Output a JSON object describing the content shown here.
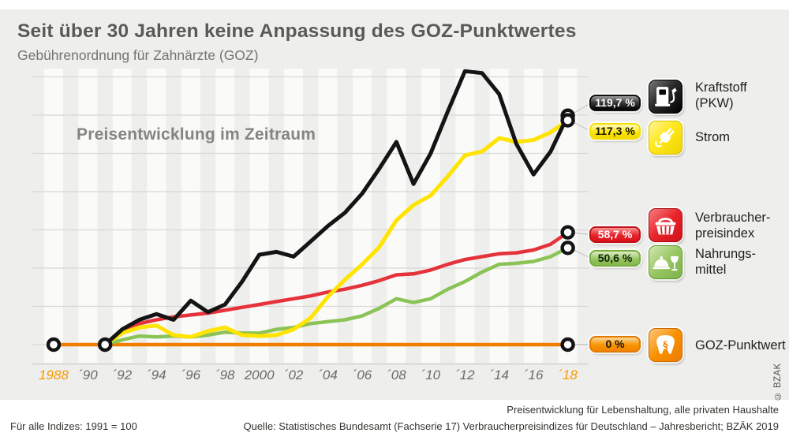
{
  "header": {
    "title": "Seit über 30 Jahren keine Anpassung des GOZ-Punktwertes",
    "subtitle": "Gebührenordnung für Zahnärzte (GOZ)"
  },
  "chart_data": {
    "type": "line",
    "title": "Preisentwicklung im Zeitraum",
    "unit": "%",
    "index_base_note": "Für alle Indizes: 1991 = 100",
    "ylim": [
      0,
      145
    ],
    "grid": {
      "horizontal": true,
      "step_pct": 20,
      "vertical_year_stripes": true
    },
    "legend_position": "right",
    "x_ticks": [
      {
        "label": "1988",
        "year": 1988,
        "accent": true
      },
      {
        "label": "´90",
        "year": 1990,
        "accent": false
      },
      {
        "label": "´92",
        "year": 1992,
        "accent": false
      },
      {
        "label": "´94",
        "year": 1994,
        "accent": false
      },
      {
        "label": "´96",
        "year": 1996,
        "accent": false
      },
      {
        "label": "´98",
        "year": 1998,
        "accent": false
      },
      {
        "label": "2000",
        "year": 2000,
        "accent": false
      },
      {
        "label": "´02",
        "year": 2002,
        "accent": false
      },
      {
        "label": "´04",
        "year": 2004,
        "accent": false
      },
      {
        "label": "´06",
        "year": 2006,
        "accent": false
      },
      {
        "label": "´08",
        "year": 2008,
        "accent": false
      },
      {
        "label": "´10",
        "year": 2010,
        "accent": false
      },
      {
        "label": "´12",
        "year": 2012,
        "accent": false
      },
      {
        "label": "´14",
        "year": 2014,
        "accent": false
      },
      {
        "label": "´16",
        "year": 2016,
        "accent": false
      },
      {
        "label": "´18",
        "year": 2018,
        "accent": true
      }
    ],
    "markers_start": [
      [
        1988,
        0
      ],
      [
        1991,
        0
      ]
    ],
    "series": [
      {
        "name": "Kraftstoff (PKW)",
        "key": "kraftstoff",
        "color": "#141414",
        "stroke_width": 5,
        "start_year": 1991,
        "end_label": "119,7 %",
        "values": [
          0,
          8,
          13,
          16,
          13,
          23,
          17,
          21,
          33,
          47,
          48.5,
          46,
          54,
          62,
          69,
          79,
          92,
          106,
          84,
          100,
          122,
          143,
          142,
          131,
          105,
          89,
          101,
          119.7
        ]
      },
      {
        "name": "Strom",
        "key": "strom",
        "color": "#ffe400",
        "stroke_width": 5,
        "start_year": 1991,
        "end_label": "117,3 %",
        "values": [
          0,
          6,
          9,
          10,
          5,
          4,
          7,
          9,
          5,
          4.5,
          5,
          8,
          14,
          25,
          34,
          42,
          51,
          65,
          73,
          78,
          88,
          99,
          101,
          108,
          106,
          107,
          111,
          117.3
        ]
      },
      {
        "name": "Verbraucherpreisindex",
        "key": "vpi",
        "color": "#e5323b",
        "stroke_width": 4.5,
        "start_year": 1991,
        "end_label": "58,7 %",
        "values": [
          0,
          8,
          11,
          13,
          14.5,
          15.5,
          16.5,
          18,
          19.5,
          21,
          22.5,
          24,
          25.5,
          27.5,
          29,
          31,
          33.5,
          36.5,
          37,
          39,
          42,
          44.5,
          46,
          47.5,
          48,
          49.5,
          52.5,
          58.7
        ]
      },
      {
        "name": "Nahrungsmittel",
        "key": "nahrungsmittel",
        "color": "#8cc356",
        "stroke_width": 4.5,
        "start_year": 1991,
        "end_label": "50,6 %",
        "values": [
          0,
          2.5,
          4.5,
          4,
          4.5,
          4,
          5,
          6.5,
          6,
          6,
          8,
          9,
          11,
          12,
          13,
          15,
          19,
          24,
          22,
          24,
          29,
          33,
          38,
          42,
          42.5,
          43.5,
          46,
          50.6
        ]
      },
      {
        "name": "GOZ-Punktwert",
        "key": "goz",
        "color": "#f07e00",
        "stroke_width": 4.5,
        "start_year": 1988,
        "end_label": "0 %",
        "values": [
          0,
          0,
          0,
          0,
          0,
          0,
          0,
          0,
          0,
          0,
          0,
          0,
          0,
          0,
          0,
          0,
          0,
          0,
          0,
          0,
          0,
          0,
          0,
          0,
          0,
          0,
          0,
          0,
          0,
          0,
          0
        ]
      }
    ]
  },
  "legend": {
    "items": [
      {
        "id": "kraftstoff",
        "value": "119,7 %",
        "line1": "Kraftstoff",
        "line2": "(PKW)",
        "icon": "fuel-pump-icon",
        "color": "#141414"
      },
      {
        "id": "strom",
        "value": "117,3 %",
        "line1": "Strom",
        "icon": "power-plug-icon",
        "color": "#ffe400"
      },
      {
        "id": "vpi",
        "value": "58,7 %",
        "line1": "Verbraucher-",
        "line2": "preisindex",
        "icon": "shopping-basket-icon",
        "color": "#e5323b"
      },
      {
        "id": "nahrungsmittel",
        "value": "50,6 %",
        "line1": "Nahrungs-",
        "line2": "mittel",
        "icon": "food-drink-icon",
        "color": "#8cc356"
      },
      {
        "id": "goz",
        "value": "0 %",
        "line1": "GOZ-Punktwert",
        "icon": "tooth-paragraph-icon",
        "color": "#f07e00"
      }
    ]
  },
  "footer": {
    "note_right": "Preisentwicklung für Lebenshaltung, alle privaten Haushalte",
    "note_left": "Für alle Indizes: 1991 = 100",
    "source": "Quelle: Statistisches Bundesamt (Fachserie 17) Verbraucherpreisindizes für Deutschland – Jahresbericht; BZÄK 2019"
  },
  "credit": "© BZÄK"
}
